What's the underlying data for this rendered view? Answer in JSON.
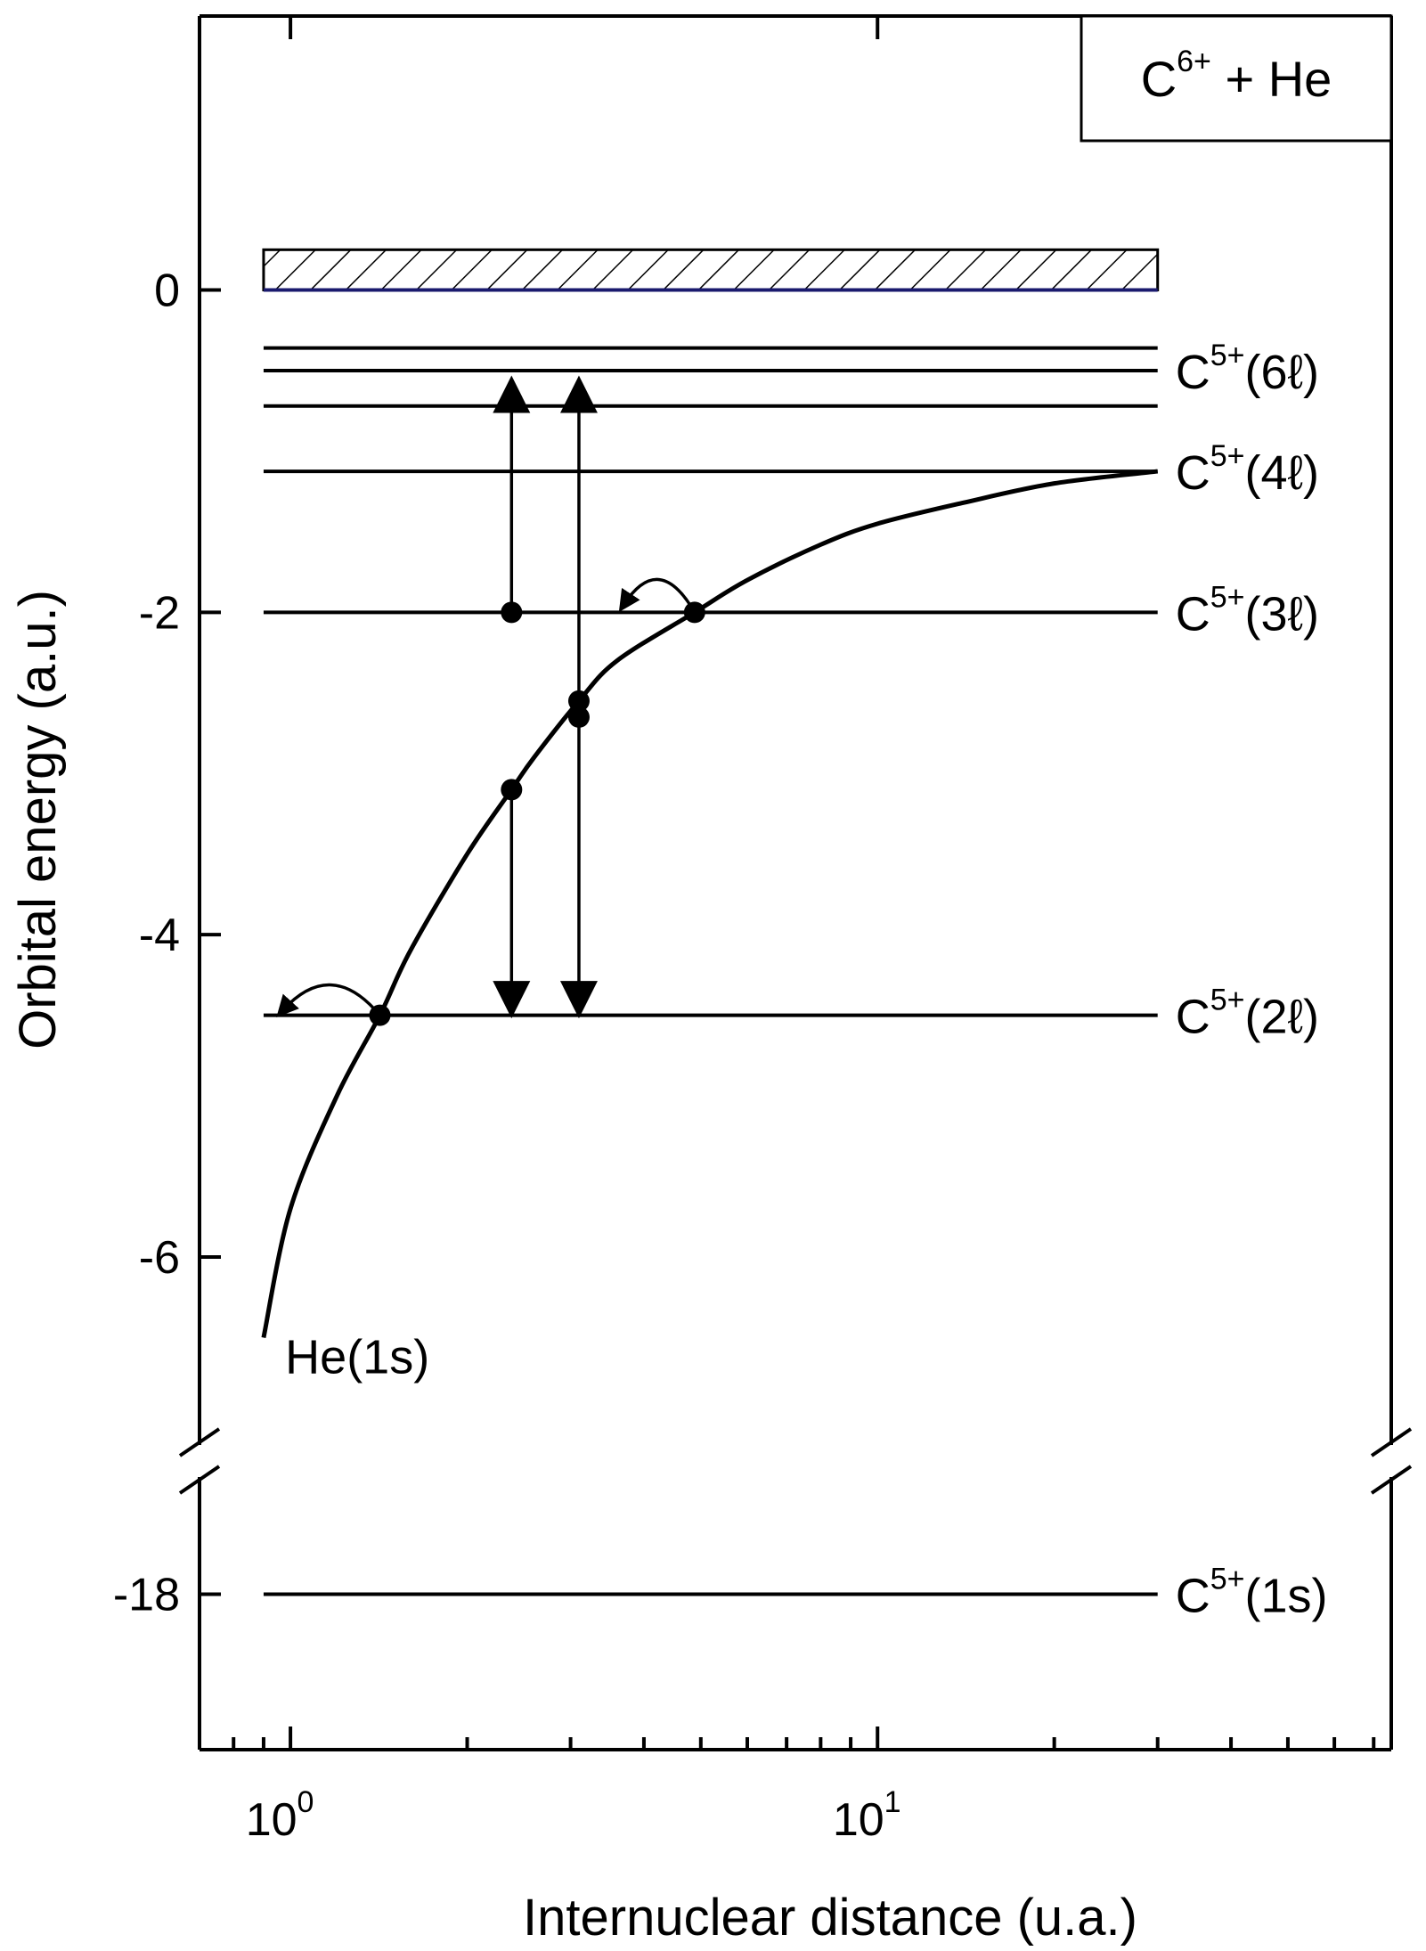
{
  "chart_data": {
    "type": "line",
    "title": "",
    "xlabel": "Internuclear distance (u.a.)",
    "ylabel": "Orbital energy (a.u.)",
    "x_scale": "log",
    "xlim": [
      0.7,
      75
    ],
    "ylim_upper": [
      -7.1,
      1.7
    ],
    "ylim_lower": [
      -19.9,
      -16.7
    ],
    "axis_break": "between -7.1 and -16.7 (marked on both vertical axes)",
    "grid": false,
    "x_ticks": {
      "major": [
        {
          "value": 1,
          "base": "10",
          "exp": "0"
        },
        {
          "value": 10,
          "base": "10",
          "exp": "1"
        }
      ],
      "minor": [
        0.8,
        0.9,
        2,
        3,
        4,
        5,
        6,
        7,
        8,
        9,
        20,
        30,
        40,
        50,
        60,
        70
      ]
    },
    "y_ticks": [
      {
        "value": 0,
        "label": "0"
      },
      {
        "value": -2,
        "label": "-2"
      },
      {
        "value": -4,
        "label": "-4"
      },
      {
        "value": -6,
        "label": "-6"
      },
      {
        "value": -18,
        "label": "-18"
      }
    ],
    "legend": {
      "position": "top-right",
      "base": "C",
      "sup": "6+",
      "rest": " + He"
    },
    "continuum_band": {
      "y_from": 0,
      "y_to": 0.25,
      "x_from": 0.9,
      "x_to": 30,
      "pattern": "hatched"
    },
    "levels": [
      {
        "y": -0.36,
        "label": null
      },
      {
        "y": -0.5,
        "label": {
          "base": "C",
          "sup": "5+",
          "text": "(6ℓ)"
        }
      },
      {
        "y": -0.72,
        "label": null
      },
      {
        "y": -1.125,
        "label": {
          "base": "C",
          "sup": "5+",
          "text": "(4ℓ)"
        }
      },
      {
        "y": -2.0,
        "label": {
          "base": "C",
          "sup": "5+",
          "text": "(3ℓ)"
        }
      },
      {
        "y": -4.5,
        "label": {
          "base": "C",
          "sup": "5+",
          "text": "(2ℓ)"
        }
      },
      {
        "y": -18.0,
        "label": {
          "base": "C",
          "sup": "5+",
          "text": "(1s)"
        }
      }
    ],
    "level_x_range": [
      0.9,
      30
    ],
    "series": [
      {
        "name": "He(1s)",
        "points": [
          [
            0.9,
            -6.5
          ],
          [
            1.0,
            -5.7
          ],
          [
            1.2,
            -5.0
          ],
          [
            1.42,
            -4.5
          ],
          [
            1.6,
            -4.1
          ],
          [
            2.0,
            -3.5
          ],
          [
            2.38,
            -3.1
          ],
          [
            2.6,
            -2.9
          ],
          [
            3.1,
            -2.55
          ],
          [
            3.6,
            -2.3
          ],
          [
            4.88,
            -2.0
          ],
          [
            6.0,
            -1.8
          ],
          [
            8.0,
            -1.58
          ],
          [
            10.0,
            -1.45
          ],
          [
            14.0,
            -1.32
          ],
          [
            20.0,
            -1.2
          ],
          [
            30.0,
            -1.125
          ]
        ]
      }
    ],
    "markers": [
      {
        "x": 1.42,
        "y": -4.5
      },
      {
        "x": 2.38,
        "y": -2.0
      },
      {
        "x": 2.38,
        "y": -3.1
      },
      {
        "x": 3.1,
        "y": -2.55
      },
      {
        "x": 3.1,
        "y": -2.65
      },
      {
        "x": 4.88,
        "y": -2.0
      }
    ],
    "arrows": [
      {
        "x": 2.38,
        "y_from": -2.0,
        "y_to": -0.55,
        "type": "single-up"
      },
      {
        "x": 3.1,
        "y_from": -2.55,
        "y_to": -0.55,
        "type": "single-up"
      },
      {
        "x": 2.38,
        "y_from": -3.1,
        "y_to": -4.5,
        "type": "single-down"
      },
      {
        "x": 3.1,
        "y_from": -2.65,
        "y_to": -4.5,
        "type": "single-down"
      }
    ],
    "curved_arrows": [
      {
        "x_from": 4.88,
        "y_from": -2.0,
        "x_to": 3.7,
        "y_to": -1.95
      },
      {
        "x_from": 1.42,
        "y_from": -4.5,
        "x_to": 0.97,
        "y_to": -4.47
      }
    ],
    "annotations": [
      {
        "text": "He(1s)",
        "x": 1.3,
        "y": -6.5
      }
    ]
  }
}
